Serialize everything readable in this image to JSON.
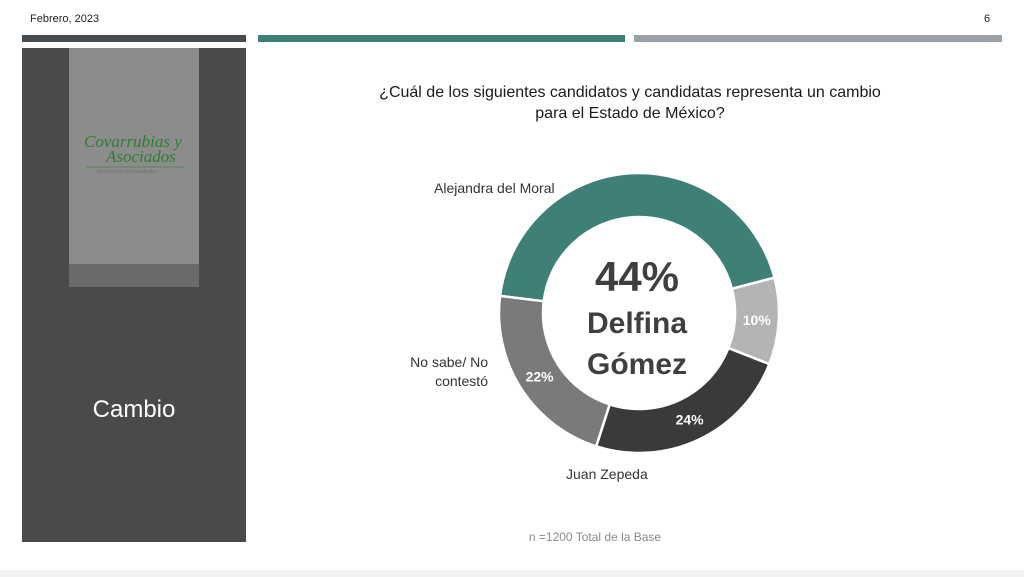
{
  "header": {
    "date": "Febrero, 2023",
    "page_number": "6"
  },
  "sidebar": {
    "title": "Cambio",
    "logo": {
      "line1": "Covarrubias y",
      "line2": "Asociados",
      "tagline": "Información con resultados"
    }
  },
  "colors": {
    "teal": "#3e8078",
    "gray": "#7a7a7a",
    "dark": "#3a3a3a",
    "light": "#b4b4b4"
  },
  "chart_data": {
    "type": "pie",
    "variant": "donut",
    "title": "¿Cuál de los siguientes candidatos y candidatas representa un cambio para el Estado de México?",
    "title_lines": [
      "¿Cuál de los siguientes candidatos y candidatas representa un cambio",
      "para el Estado de México?"
    ],
    "slices": [
      {
        "label": "Delfina Gómez",
        "value": 44,
        "display": "44%",
        "color": "#3e8078",
        "shown_in_center": true
      },
      {
        "label": "Juan Zepeda",
        "value": 10,
        "display": "10%",
        "color": "#b4b4b4"
      },
      {
        "label": "No sabe/ No contestó",
        "label_lines": [
          "No sabe/ No",
          "contestó"
        ],
        "value": 24,
        "display": "24%",
        "color": "#3a3a3a"
      },
      {
        "label": "Alejandra del Moral",
        "value": 22,
        "display": "22%",
        "color": "#7a7a7a"
      }
    ],
    "center_text": {
      "value": "44%",
      "name_lines": [
        "Delfina",
        "Gómez"
      ]
    },
    "note": "n =1200 Total de la Base"
  }
}
